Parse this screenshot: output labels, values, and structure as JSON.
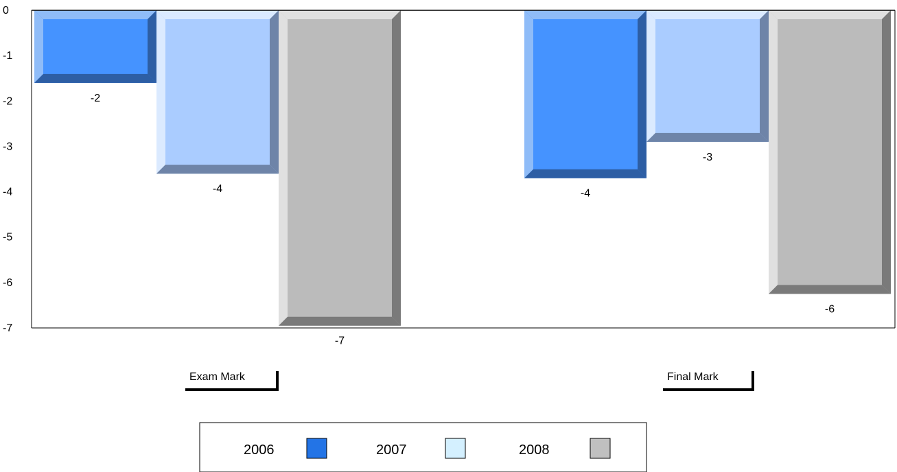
{
  "chart_data": {
    "type": "bar",
    "title": "",
    "xlabel": "",
    "ylabel": "",
    "categories": [
      "Exam Mark",
      "Final Mark"
    ],
    "series": [
      {
        "name": "2006",
        "values": [
          -1.6,
          -3.7
        ],
        "labels": [
          "-2",
          "-4"
        ]
      },
      {
        "name": "2007",
        "values": [
          -3.6,
          -2.9
        ],
        "labels": [
          "-4",
          "-3"
        ]
      },
      {
        "name": "2008",
        "values": [
          -6.95,
          -6.25
        ],
        "labels": [
          "-7",
          "-6"
        ]
      }
    ],
    "ylim": [
      -7,
      0
    ],
    "yticks": [
      "0",
      "-1",
      "-2",
      "-3",
      "-4",
      "-5",
      "-6",
      "-7"
    ],
    "grid": false,
    "legend_position": "bottom",
    "colors": {
      "2006": {
        "light": "#8fbcf8",
        "face": "#4593ff",
        "dark": "#2d5ea4",
        "legend": "#2374e6"
      },
      "2007": {
        "light": "#dbeaff",
        "face": "#aaccff",
        "dark": "#6e84a8",
        "legend": "#d4f0ff"
      },
      "2008": {
        "light": "#e0e0e0",
        "face": "#bbbbbb",
        "dark": "#7a7a7a",
        "legend": "#c0c0c0"
      }
    }
  }
}
